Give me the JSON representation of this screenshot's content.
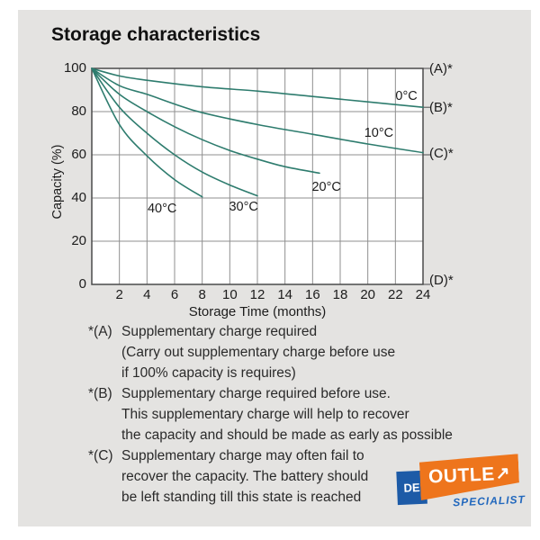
{
  "page": {
    "title": "Storage characteristics"
  },
  "chart_data": {
    "type": "line",
    "title": "Storage characteristics",
    "xlabel": "Storage Time (months)",
    "ylabel": "Capacity (%)",
    "xlim": [
      0,
      24
    ],
    "ylim": [
      0,
      100
    ],
    "x_ticks": [
      2,
      4,
      6,
      8,
      10,
      12,
      14,
      16,
      18,
      20,
      22,
      24
    ],
    "y_ticks": [
      0,
      20,
      40,
      60,
      80,
      100
    ],
    "grid": true,
    "colors": {
      "curve": "#2e7c6e",
      "grid": "#8f8f8f",
      "border": "#4a4a4a",
      "plot_bg": "#ffffff",
      "panel_bg": "#e4e3e1"
    },
    "series": [
      {
        "name": "0°C",
        "points": [
          [
            0,
            100
          ],
          [
            2,
            96.5
          ],
          [
            4,
            94.5
          ],
          [
            8,
            91.5
          ],
          [
            12,
            89.5
          ],
          [
            16,
            87
          ],
          [
            20,
            84.5
          ],
          [
            24,
            82
          ]
        ],
        "label_month": 22.8,
        "label_capacity": 87
      },
      {
        "name": "10°C",
        "points": [
          [
            0,
            100
          ],
          [
            2,
            92
          ],
          [
            4,
            88
          ],
          [
            6,
            83.5
          ],
          [
            8,
            79.5
          ],
          [
            12,
            74
          ],
          [
            16,
            69.5
          ],
          [
            20,
            65
          ],
          [
            24,
            61
          ]
        ],
        "label_month": 20.8,
        "label_capacity": 70
      },
      {
        "name": "20°C",
        "points": [
          [
            0,
            100
          ],
          [
            2,
            88
          ],
          [
            4,
            80
          ],
          [
            6,
            73
          ],
          [
            8,
            67
          ],
          [
            10,
            62
          ],
          [
            12,
            58
          ],
          [
            14,
            54.5
          ],
          [
            16.5,
            51.5
          ]
        ],
        "label_month": 17.0,
        "label_capacity": 45
      },
      {
        "name": "30°C",
        "points": [
          [
            0,
            100
          ],
          [
            2,
            82
          ],
          [
            4,
            70
          ],
          [
            6,
            60
          ],
          [
            8,
            52
          ],
          [
            10,
            46
          ],
          [
            12,
            41
          ]
        ],
        "label_month": 11.0,
        "label_capacity": 36
      },
      {
        "name": "40°C",
        "points": [
          [
            0,
            100
          ],
          [
            2,
            74
          ],
          [
            4,
            59.5
          ],
          [
            6,
            48.5
          ],
          [
            8,
            40.5
          ]
        ],
        "label_month": 5.1,
        "label_capacity": 35
      }
    ],
    "right_labels": [
      {
        "text": "(A)*",
        "label_capacity": 100,
        "connector_capacity": 100
      },
      {
        "text": "(B)*",
        "label_capacity": 82,
        "connector_capacity": 82
      },
      {
        "text": "(C)*",
        "label_capacity": 60.5,
        "connector_capacity": 60
      },
      {
        "text": "(D)*",
        "label_capacity": 2,
        "connector_capacity": 0
      }
    ]
  },
  "notes": [
    {
      "tag": "*(A)",
      "lines": [
        "Supplementary charge required",
        "(Carry out supplementary charge before use",
        "if 100% capacity is requires)"
      ]
    },
    {
      "tag": "*(B)",
      "lines": [
        "Supplementary charge required before use.",
        "This supplementary charge will help to recover",
        "the capacity and should be made as early as possible"
      ]
    },
    {
      "tag": "*(C)",
      "lines": [
        "Supplementary charge may often fail to",
        "recover the capacity. The battery should",
        "be left standing till this state is reached"
      ]
    }
  ],
  "logo": {
    "de": "DE",
    "outlet": "OUTLE",
    "arrow": "↗",
    "specialist": "SPECIALIST",
    "orange": "#ee751c",
    "blue": "#1d5ba7",
    "specialist_blue": "#2268bd"
  }
}
